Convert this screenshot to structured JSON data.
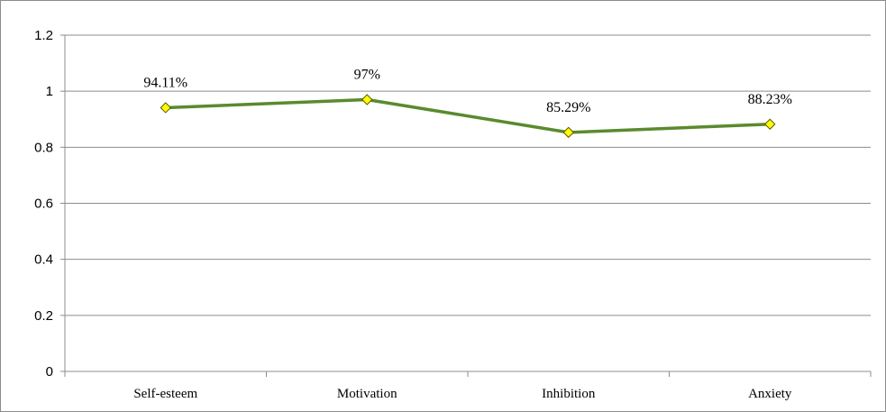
{
  "chart_data": {
    "type": "line",
    "categories": [
      "Self-esteem",
      "Motivation",
      "Inhibition",
      "Anxiety"
    ],
    "series": [
      {
        "values": [
          0.9411,
          0.97,
          0.8529,
          0.8823
        ],
        "data_labels": [
          "94.11%",
          "97%",
          "85.29%",
          "88.23%"
        ],
        "line_color": "#5a8a2e",
        "marker": "diamond",
        "marker_color": "#ffff00"
      }
    ],
    "y_ticks": [
      "0",
      "0.2",
      "0.4",
      "0.6",
      "0.8",
      "1",
      "1.2"
    ],
    "ylim": [
      0,
      1.2
    ],
    "grid": true,
    "legend": "none"
  }
}
